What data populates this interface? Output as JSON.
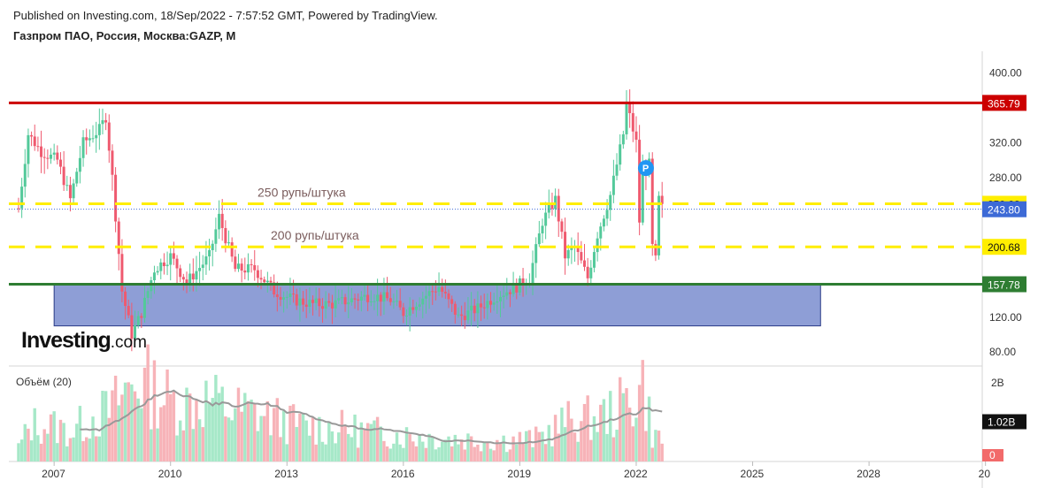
{
  "header": {
    "published": "Published on Investing.com, 18/Sep/2022 - 7:57:52 GMT, Powered by TradingView.",
    "symbol": "Газпром ПАО, Россия, Москва:GAZP, M"
  },
  "logo": {
    "text": "Investing",
    "suffix": ".com"
  },
  "colors": {
    "up": "#53c99a",
    "up_fill": "#a6e8c8",
    "down": "#ef5a6f",
    "down_fill": "#f7b3b8",
    "resistance": "#cc0000",
    "support": "#2e7d32",
    "level": "#ffee00",
    "zone_fill": "#8e9ed6",
    "zone_border": "#2a3a86",
    "ma": "#999999",
    "pin": "#2196f3"
  },
  "chart_data": [
    {
      "type": "candlestick",
      "timeframe": "M",
      "x_range": [
        "2005-11-01",
        "2030-12-01"
      ],
      "ylim": [
        65,
        425
      ],
      "y_ticks": [
        "400.00",
        "320.00",
        "280.00",
        "120.00",
        "80.00"
      ],
      "x_ticks": [
        "2007",
        "2010",
        "2013",
        "2016",
        "2019",
        "2022",
        "2025",
        "2028",
        "20"
      ],
      "close_keypoints": [
        [
          "2006-02",
          245
        ],
        [
          "2006-05",
          330
        ],
        [
          "2006-09",
          310
        ],
        [
          "2007-02",
          300
        ],
        [
          "2007-06",
          255
        ],
        [
          "2007-10",
          320
        ],
        [
          "2008-03",
          335
        ],
        [
          "2008-05",
          350
        ],
        [
          "2008-07",
          280
        ],
        [
          "2008-10",
          150
        ],
        [
          "2009-01",
          100
        ],
        [
          "2009-04",
          125
        ],
        [
          "2009-08",
          175
        ],
        [
          "2010-01",
          190
        ],
        [
          "2010-06",
          160
        ],
        [
          "2011-01",
          190
        ],
        [
          "2011-04",
          235
        ],
        [
          "2011-09",
          175
        ],
        [
          "2012-03",
          175
        ],
        [
          "2012-09",
          150
        ],
        [
          "2013-03",
          140
        ],
        [
          "2013-09",
          135
        ],
        [
          "2014-03",
          135
        ],
        [
          "2014-09",
          140
        ],
        [
          "2015-03",
          145
        ],
        [
          "2015-09",
          140
        ],
        [
          "2016-01",
          125
        ],
        [
          "2016-06",
          140
        ],
        [
          "2016-12",
          155
        ],
        [
          "2017-06",
          120
        ],
        [
          "2017-12",
          130
        ],
        [
          "2018-06",
          145
        ],
        [
          "2018-12",
          155
        ],
        [
          "2019-04",
          165
        ],
        [
          "2019-08",
          230
        ],
        [
          "2019-12",
          255
        ],
        [
          "2020-03",
          190
        ],
        [
          "2020-06",
          200
        ],
        [
          "2020-10",
          165
        ],
        [
          "2021-01",
          215
        ],
        [
          "2021-05",
          260
        ],
        [
          "2021-09",
          330
        ],
        [
          "2021-10",
          365
        ],
        [
          "2022-01",
          320
        ],
        [
          "2022-02",
          230
        ],
        [
          "2022-03",
          285
        ],
        [
          "2022-05",
          295
        ],
        [
          "2022-06",
          200
        ],
        [
          "2022-07",
          185
        ],
        [
          "2022-08",
          255
        ],
        [
          "2022-09",
          245
        ]
      ],
      "last_price": "243.80",
      "levels": [
        {
          "name": "resistance",
          "value": 365.79,
          "label": "365.79",
          "style": "solid",
          "color": "#cc0000"
        },
        {
          "name": "level-250",
          "value": 250.08,
          "label": "250.08",
          "style": "dashed",
          "color": "#ffee00",
          "annotation": "250 рупь/штука"
        },
        {
          "name": "level-200",
          "value": 200.68,
          "label": "200.68",
          "style": "dashed",
          "color": "#ffee00",
          "annotation": "200 рупь/штука"
        },
        {
          "name": "support",
          "value": 157.78,
          "label": "157.78",
          "style": "solid",
          "color": "#2e7d32"
        }
      ],
      "zone": {
        "from": "2007-01",
        "to": "2026-10",
        "y_low": 110,
        "y_high": 157.78
      },
      "marker": {
        "label": "P",
        "date": "2022-04",
        "value": 291
      }
    },
    {
      "type": "bar",
      "title": "Объём (20)",
      "ylim": [
        0,
        2.4
      ],
      "y_ticks": [
        "2B"
      ],
      "value_unit": "B",
      "last_value": "1.02B",
      "zero_label": "0",
      "volume_keypoints": [
        [
          "2006-02",
          0.35
        ],
        [
          "2006-06",
          0.9
        ],
        [
          "2007-01",
          0.85
        ],
        [
          "2007-06",
          0.7
        ],
        [
          "2008-01",
          1.1
        ],
        [
          "2008-06",
          1.2
        ],
        [
          "2008-10",
          1.6
        ],
        [
          "2009-03",
          2.0
        ],
        [
          "2010-01",
          1.45
        ],
        [
          "2010-06",
          1.4
        ],
        [
          "2011-01",
          1.5
        ],
        [
          "2011-06",
          1.3
        ],
        [
          "2012-01",
          1.2
        ],
        [
          "2012-09",
          1.05
        ],
        [
          "2013-06",
          0.85
        ],
        [
          "2014-06",
          0.8
        ],
        [
          "2015-06",
          0.7
        ],
        [
          "2016-06",
          0.6
        ],
        [
          "2017-06",
          0.55
        ],
        [
          "2018-06",
          0.5
        ],
        [
          "2019-06",
          0.55
        ],
        [
          "2020-03",
          0.95
        ],
        [
          "2021-01",
          1.05
        ],
        [
          "2021-06",
          1.2
        ],
        [
          "2022-01",
          1.6
        ],
        [
          "2022-03",
          1.9
        ],
        [
          "2022-06",
          0.7
        ],
        [
          "2022-09",
          0.5
        ]
      ],
      "ma_period": 20
    }
  ]
}
